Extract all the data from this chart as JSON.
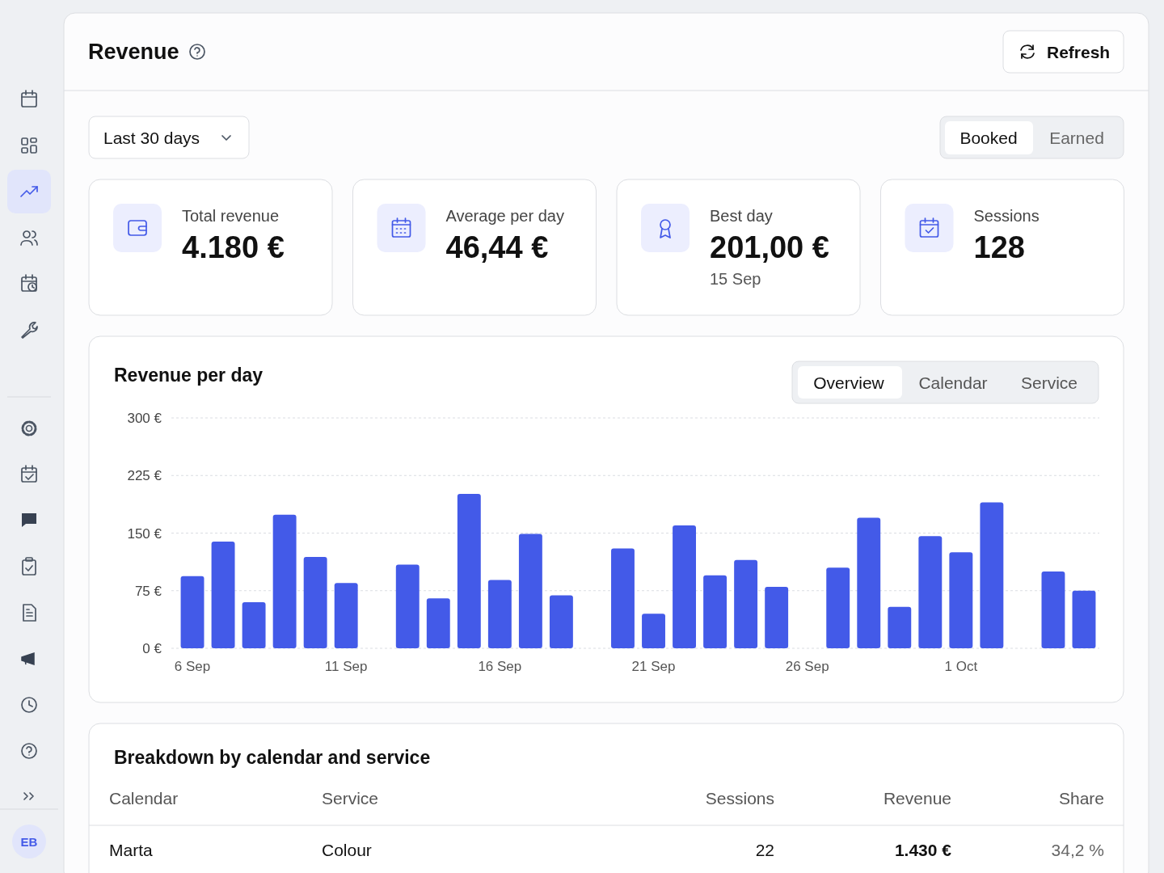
{
  "chart_data": [
    {
      "type": "other",
      "title": "Revenue",
      "annotations": [
        "Refresh",
        "Last 30 days",
        "Booked",
        "Earned",
        "EB"
      ]
    },
    {
      "type": "other",
      "title": "Total revenue",
      "annotations": [
        "4.180 €"
      ]
    },
    {
      "type": "other",
      "title": "Average per day",
      "annotations": [
        "46,44 €"
      ]
    },
    {
      "type": "other",
      "title": "Best day",
      "annotations": [
        "201,00 €",
        "15 Sep"
      ]
    },
    {
      "type": "other",
      "title": "Sessions",
      "annotations": [
        "128"
      ]
    },
    {
      "type": "bar",
      "title": "Revenue per day",
      "color": "#435ae8",
      "grid": "y",
      "annotations": [
        "Overview",
        "Calendar",
        "Service"
      ],
      "categories": [
        "6 Sep",
        null,
        null,
        null,
        null,
        "11 Sep",
        null,
        null,
        null,
        null,
        "16 Sep",
        null,
        null,
        null,
        null,
        "21 Sep",
        null,
        null,
        null,
        null,
        "26 Sep",
        null,
        null,
        null,
        null,
        "1 Oct",
        null,
        null,
        null,
        null
      ],
      "values": [
        94,
        139,
        60,
        174,
        119,
        85,
        0,
        109,
        65,
        201,
        89,
        149,
        69,
        0,
        130,
        45,
        160,
        95,
        115,
        80,
        0,
        105,
        170,
        54,
        146,
        125,
        190,
        0,
        100,
        75
      ],
      "ylim": [
        0,
        300
      ],
      "yticks": [
        {
          "value": 0,
          "label": "0 €"
        },
        {
          "value": 75,
          "label": "75 €"
        },
        {
          "value": 150,
          "label": "150 €"
        },
        {
          "value": 225,
          "label": "225 €"
        },
        {
          "value": 300,
          "label": "300 €"
        }
      ]
    },
    {
      "type": "other",
      "title": "Breakdown by calendar and service",
      "annotations": [
        "Calendar",
        "Service",
        "Sessions",
        "Revenue",
        "Share",
        "Marta",
        "Colour",
        "22",
        "1.430 €",
        "34,2 %"
      ]
    }
  ]
}
